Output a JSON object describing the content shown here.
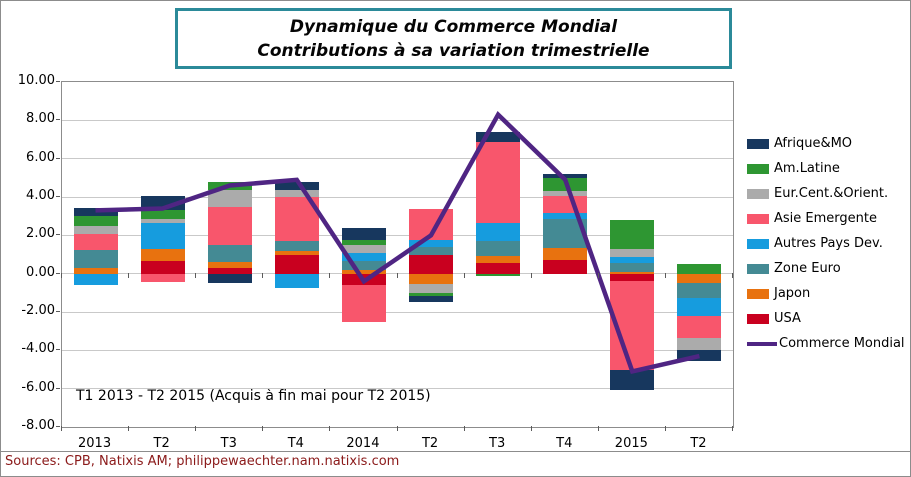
{
  "title": {
    "line1": "Dynamique du Commerce Mondial",
    "line2": "Contributions à sa variation trimestrielle"
  },
  "annotation": "T1 2013 - T2 2015 (Acquis à fin mai pour T2 2015)",
  "source_text": "Sources: CPB, Natixis AM; philippewaechter.nam.natixis.com",
  "colors": {
    "title_border": "#2b8a99",
    "source_text": "#8b1a1a",
    "grid": "#c9c9c9",
    "plot_border": "#8c8c8c",
    "line_series": "#4f2583"
  },
  "chart_data": {
    "type": "bar",
    "subtype": "stacked-bar-with-line-overlay",
    "title": "Dynamique du Commerce Mondial — Contributions à sa variation trimestrielle",
    "categories": [
      "2013",
      "T2",
      "T3",
      "T4",
      "2014",
      "T2",
      "T3",
      "T4",
      "2015",
      "T2"
    ],
    "series": [
      {
        "name": "USA",
        "color": "#c9001f",
        "values": [
          0,
          0.65,
          0.3,
          0.95,
          -0.6,
          0.95,
          0.55,
          0.7,
          -0.4,
          0
        ]
      },
      {
        "name": "Japon",
        "color": "#e8720f",
        "values": [
          0.3,
          0.65,
          0.3,
          0.25,
          0.2,
          -0.55,
          0.35,
          0.65,
          0.1,
          -0.5
        ]
      },
      {
        "name": "Zone Euro",
        "color": "#448a94",
        "values": [
          0.95,
          0,
          0.9,
          0.5,
          0.45,
          0.45,
          0.8,
          1.5,
          0.45,
          -0.75
        ]
      },
      {
        "name": "Autres Pays Dev.",
        "color": "#169cde",
        "values": [
          -0.6,
          1.35,
          0,
          -0.75,
          0.45,
          0.35,
          0.95,
          0.3,
          0.3,
          -0.95
        ]
      },
      {
        "name": "Asie Emergente",
        "color": "#f8566c",
        "values": [
          0.8,
          -0.45,
          2.0,
          2.3,
          -1.9,
          1.6,
          4.2,
          0.9,
          -4.65,
          -1.15
        ]
      },
      {
        "name": "Eur.Cent.&Orient.",
        "color": "#ababab",
        "values": [
          0.45,
          0.2,
          0.85,
          0.35,
          0.4,
          -0.45,
          0,
          0.25,
          0.45,
          -0.65
        ]
      },
      {
        "name": "Am.Latine",
        "color": "#2e9632",
        "values": [
          0.5,
          0.45,
          0.45,
          0,
          0.25,
          -0.15,
          -0.1,
          0.7,
          1.5,
          0.5
        ]
      },
      {
        "name": "Afrique&MO",
        "color": "#17375e",
        "values": [
          0.45,
          0.75,
          -0.5,
          0.45,
          0.65,
          -0.35,
          0.55,
          0.2,
          -1.0,
          -0.55
        ]
      }
    ],
    "line_series": {
      "name": "Commerce Mondial",
      "color": "#4f2583",
      "values": [
        3.3,
        3.4,
        4.6,
        4.9,
        -0.4,
        2.0,
        8.3,
        4.9,
        -5.1,
        -4.3
      ]
    },
    "ylim": [
      -8,
      10
    ],
    "ytick_step": 2,
    "ytick_format_decimals": 2,
    "grid": true,
    "legend_position": "right",
    "legend": [
      "Afrique&MO",
      "Am.Latine",
      "Eur.Cent.&Orient.",
      "Asie Emergente",
      "Autres Pays Dev.",
      "Zone Euro",
      "Japon",
      "USA",
      "Commerce Mondial"
    ]
  }
}
